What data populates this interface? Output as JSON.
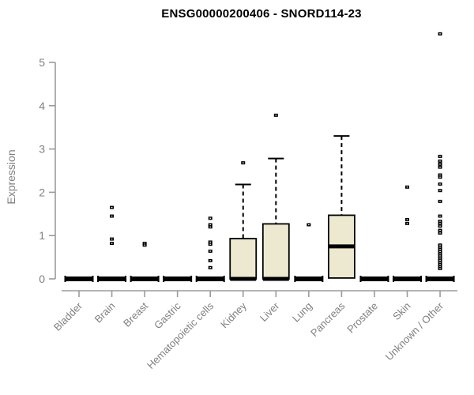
{
  "chart_data": {
    "type": "boxplot",
    "title": "ENSG00000200406 - SNORD114-23",
    "xlabel": "",
    "ylabel": "Expression",
    "yticks": [
      0,
      1,
      2,
      3,
      4,
      5
    ],
    "ylim": [
      0,
      5.8
    ],
    "grid": false,
    "legend": "none",
    "categories": [
      "Bladder",
      "Brain",
      "Breast",
      "Gastric",
      "Hematopoietic cells",
      "Kidney",
      "Liver",
      "Lung",
      "Pancreas",
      "Prostate",
      "Skin",
      "Unknown / Other"
    ],
    "boxes": [
      {
        "category": "Bladder",
        "min": 0,
        "q1": 0,
        "median": 0,
        "q3": 0,
        "max": 0,
        "outliers": []
      },
      {
        "category": "Brain",
        "min": 0,
        "q1": 0,
        "median": 0,
        "q3": 0,
        "max": 0,
        "outliers": [
          1.65,
          1.45,
          0.92,
          0.82
        ]
      },
      {
        "category": "Breast",
        "min": 0,
        "q1": 0,
        "median": 0,
        "q3": 0,
        "max": 0,
        "outliers": [
          0.82,
          0.78
        ]
      },
      {
        "category": "Gastric",
        "min": 0,
        "q1": 0,
        "median": 0,
        "q3": 0,
        "max": 0,
        "outliers": []
      },
      {
        "category": "Hematopoietic cells",
        "min": 0,
        "q1": 0,
        "median": 0,
        "q3": 0,
        "max": 0,
        "outliers": [
          1.4,
          1.25,
          1.2,
          0.85,
          0.8,
          0.64,
          0.42,
          0.26
        ]
      },
      {
        "category": "Kidney",
        "min": 0,
        "q1": 0,
        "median": 0,
        "q3": 0.93,
        "max": 2.18,
        "outliers": [
          2.68
        ]
      },
      {
        "category": "Liver",
        "min": 0,
        "q1": 0,
        "median": 0,
        "q3": 1.27,
        "max": 2.78,
        "outliers": [
          3.78
        ]
      },
      {
        "category": "Lung",
        "min": 0,
        "q1": 0,
        "median": 0,
        "q3": 0,
        "max": 0,
        "outliers": [
          1.25
        ]
      },
      {
        "category": "Pancreas",
        "min": 0.02,
        "q1": 0.02,
        "median": 0.75,
        "q3": 1.47,
        "max": 3.3,
        "outliers": []
      },
      {
        "category": "Prostate",
        "min": 0,
        "q1": 0,
        "median": 0,
        "q3": 0,
        "max": 0,
        "outliers": []
      },
      {
        "category": "Skin",
        "min": 0,
        "q1": 0,
        "median": 0,
        "q3": 0,
        "max": 0,
        "outliers": [
          2.12,
          1.37,
          1.28
        ]
      },
      {
        "category": "Unknown / Other",
        "min": 0,
        "q1": 0,
        "median": 0,
        "q3": 0,
        "max": 0,
        "outliers": [
          5.66,
          2.83,
          2.72,
          2.65,
          2.58,
          2.4,
          2.35,
          2.19,
          2.04,
          1.79,
          1.45,
          1.33,
          1.28,
          1.22,
          1.12,
          1.06,
          0.78,
          0.73,
          0.68,
          0.63,
          0.58,
          0.53,
          0.48,
          0.43,
          0.38,
          0.33,
          0.28,
          0.24
        ]
      }
    ],
    "colors": {
      "box_fill": "#EDE8D0",
      "box_stroke": "#000000",
      "median": "#000000",
      "outlier": "#000000",
      "axis_line": "#9b9b9b",
      "tick_label": "#808080",
      "title": "#000000",
      "background": "#ffffff"
    }
  }
}
